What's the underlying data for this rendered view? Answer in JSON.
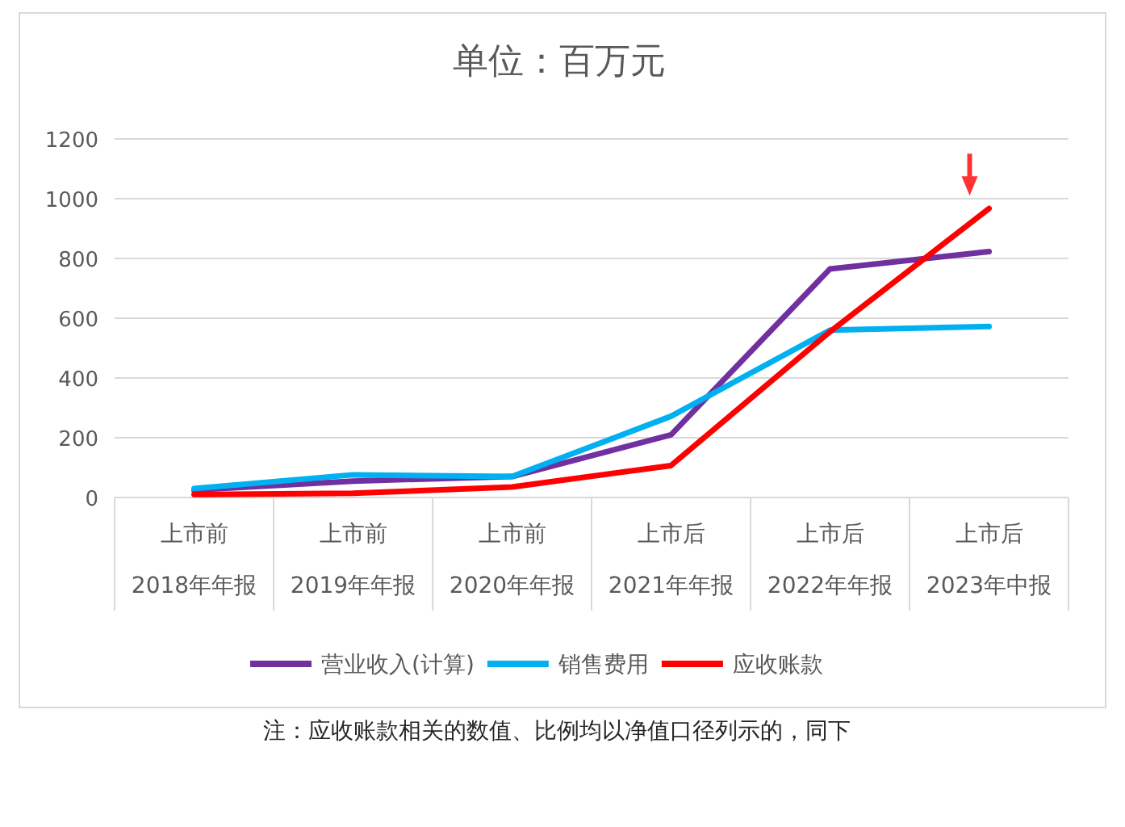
{
  "chart_data": {
    "type": "line",
    "title": "单位：百万元",
    "categories": [
      "上市前\n2018年年报",
      "上市前\n2019年年报",
      "上市前\n2020年年报",
      "上市后\n2021年年报",
      "上市后\n2022年年报",
      "上市后\n2023年中报"
    ],
    "series": [
      {
        "name": "营业收入(计算)",
        "color": "#7030a0",
        "values": [
          25,
          55,
          70,
          210,
          765,
          823
        ]
      },
      {
        "name": "销售费用",
        "color": "#00b0f0",
        "values": [
          30,
          76,
          70,
          272,
          560,
          572
        ]
      },
      {
        "name": "应收账款",
        "color": "#ff0000",
        "values": [
          10,
          14,
          35,
          107,
          555,
          967
        ]
      }
    ],
    "ylim": [
      0,
      1200
    ],
    "yticks": [
      0,
      200,
      400,
      600,
      800,
      1000,
      1200
    ],
    "grid": "y",
    "legend": "bottom",
    "marker": "none",
    "line_style": "solid",
    "annotations": [
      "注：应收账款相关的数值、比例均以净值口径列示的，同下"
    ]
  }
}
